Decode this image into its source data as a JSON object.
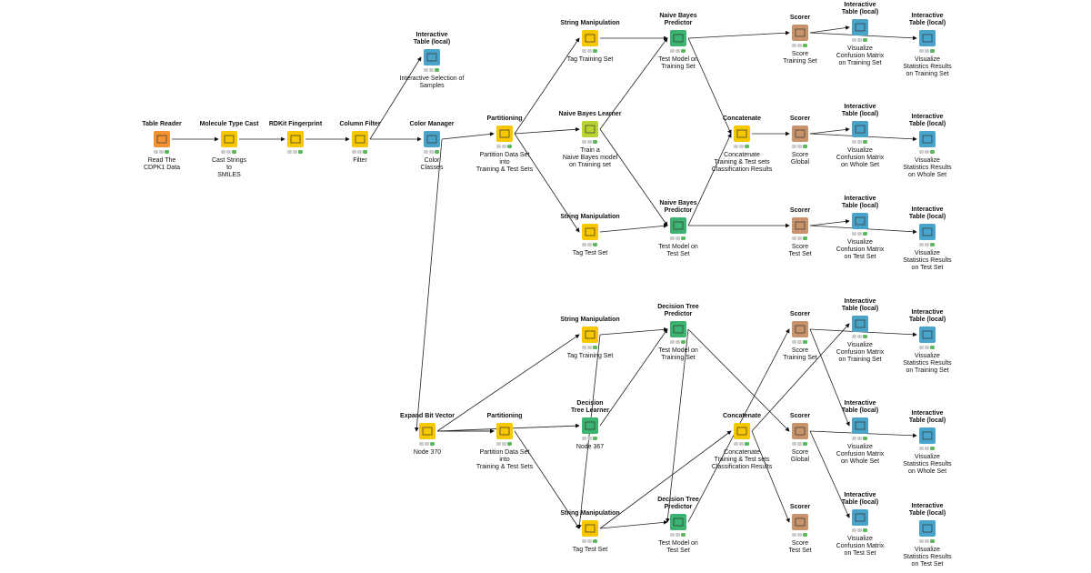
{
  "nodes": [
    {
      "title": "Table Reader",
      "label": "Read The\nCDPK1 Data",
      "color": "#f39232"
    },
    {
      "title": "Molecule Type Cast",
      "label": "Cast  Strings\nto\nSMILES",
      "color": "#f7c800"
    },
    {
      "title": "RDKit Fingerprint",
      "color": "#f7c800"
    },
    {
      "title": "Column Filter",
      "label": "Filter",
      "color": "#f7c800"
    },
    {
      "title": "Interactive\nTable (local)",
      "label": "Interactive Selection of\nSamples",
      "color": "#4aa3c9"
    },
    {
      "title": "Color Manager",
      "label": "Color\nClasses",
      "color": "#4aa3c9"
    },
    {
      "title": "Partitioning",
      "label": "Partition Data Set\ninto\nTraining & Test Sets",
      "color": "#f7c800"
    },
    {
      "title": "String Manipulation",
      "label": "Tag Training Set",
      "color": "#f7c800"
    },
    {
      "title": "Naive Bayes Learner",
      "label": "Train a\nNaive Bayes model\non Training set",
      "color": "#b8d432"
    },
    {
      "title": "String Manipulation",
      "label": "Tag Test Set",
      "color": "#f7c800"
    },
    {
      "title": "Naive Bayes\nPredictor",
      "label": "Test Model on\nTraining Set",
      "color": "#3cb371"
    },
    {
      "title": "Naive Bayes\nPredictor",
      "label": "Test Model on\nTest Set",
      "color": "#3cb371"
    },
    {
      "title": "Concatenate",
      "label": "Concatenate\nTraining & Test sets\nClassification Results",
      "color": "#f7c800"
    },
    {
      "title": "Scorer",
      "label": "Score\nTraining Set",
      "color": "#c9946b"
    },
    {
      "title": "Scorer",
      "label": "Score\nGlobal",
      "color": "#c9946b"
    },
    {
      "title": "Scorer",
      "label": "Score\nTest Set",
      "color": "#c9946b"
    },
    {
      "title": "Interactive\nTable (local)",
      "label": "Visualize\nConfusion Matrix\non Training Set",
      "color": "#4aa3c9"
    },
    {
      "title": "Interactive\nTable (local)",
      "label": "Visualize\nStatistics Results\non Training Set",
      "color": "#4aa3c9"
    },
    {
      "title": "Interactive\nTable (local)",
      "label": "Visualize\nConfusion Matrix\non Whole Set",
      "color": "#4aa3c9"
    },
    {
      "title": "Interactive\nTable (local)",
      "label": "Visualize\nStatistics Results\non Whole Set",
      "color": "#4aa3c9"
    },
    {
      "title": "Interactive\nTable (local)",
      "label": "Visualize\nConfusion Matrix\non Test Set",
      "color": "#4aa3c9"
    },
    {
      "title": "Interactive\nTable (local)",
      "label": "Visualize\nStatistics Results\non Test Set",
      "color": "#4aa3c9"
    },
    {
      "title": "Expand Bit Vector",
      "label": "Node 370",
      "color": "#f7c800"
    },
    {
      "title": "Partitioning",
      "label": "Partition Data Set\ninto\nTraining & Test Sets",
      "color": "#f7c800"
    },
    {
      "title": "String Manipulation",
      "label": "Tag Training Set",
      "color": "#f7c800"
    },
    {
      "title": "Decision\nTree Learner",
      "label": "Node 367",
      "color": "#3cb371"
    },
    {
      "title": "String Manipulation",
      "label": "Tag Test Set",
      "color": "#f7c800"
    },
    {
      "title": "Decision Tree\nPredictor",
      "label": "Test Model on\nTraining Set",
      "color": "#3cb371"
    },
    {
      "title": "Decision Tree\nPredictor",
      "label": "Test Model on\nTest Set",
      "color": "#3cb371"
    },
    {
      "title": "Concatenate",
      "label": "Concatenate\nTraining & Test sets\nClassification Results",
      "color": "#f7c800"
    },
    {
      "title": "Scorer",
      "label": "Score\nTraining Set",
      "color": "#c9946b"
    },
    {
      "title": "Scorer",
      "label": "Score\nGlobal",
      "color": "#c9946b"
    },
    {
      "title": "Scorer",
      "label": "Score\nTest Set",
      "color": "#c9946b"
    },
    {
      "title": "Interactive\nTable (local)",
      "label": "Visualize\nConfusion Matrix\non Training Set",
      "color": "#4aa3c9"
    },
    {
      "title": "Interactive\nTable (local)",
      "label": "Visualize\nStatistics Results\non Training Set",
      "color": "#4aa3c9"
    },
    {
      "title": "Interactive\nTable (local)",
      "label": "Visualize\nConfusion Matrix\non Whole Set",
      "color": "#4aa3c9"
    },
    {
      "title": "Interactive\nTable (local)",
      "label": "Visualize\nStatistics Results\non Whole Set",
      "color": "#4aa3c9"
    },
    {
      "title": "Interactive\nTable (local)",
      "label": "Visualize\nConfusion Matrix\non Test Set",
      "color": "#4aa3c9"
    },
    {
      "title": "Interactive\nTable (local)",
      "label": "Visualize\nStatistics Results\non Test Set",
      "color": "#4aa3c9"
    }
  ]
}
